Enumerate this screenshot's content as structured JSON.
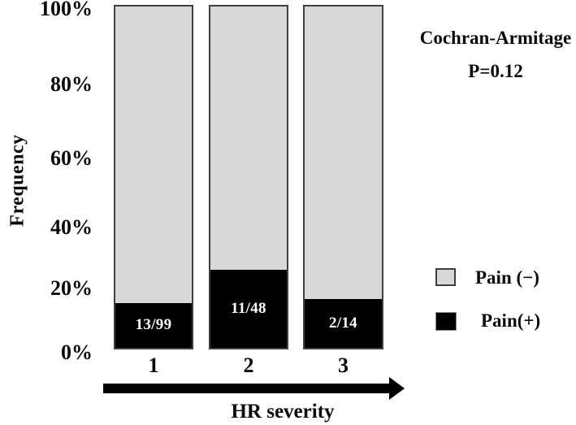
{
  "chart_data": {
    "type": "bar",
    "stacked": true,
    "percent_scale": true,
    "categories": [
      "1",
      "2",
      "3"
    ],
    "xlabel": "HR severity",
    "ylabel": "Frequency",
    "ylim": [
      0,
      100
    ],
    "ytick_labels": [
      "0%",
      "20%",
      "40%",
      "60%",
      "80%",
      "100%"
    ],
    "grid": false,
    "legend_position": "right",
    "series": [
      {
        "name": "Pain(+)",
        "color": "#000000",
        "counts": [
          "13/99",
          "11/48",
          "2/14"
        ],
        "values_pct": [
          13.13,
          22.92,
          14.29
        ]
      },
      {
        "name": "Pain (−)",
        "color": "#d8d8d8",
        "values_pct": [
          86.87,
          77.08,
          85.71
        ]
      }
    ],
    "annotations": [
      "Cochran-Armitage",
      "P=0.12"
    ],
    "legend": [
      {
        "label": "Pain (−)",
        "swatch_color": "#d8d8d8"
      },
      {
        "label": "Pain(+)",
        "swatch_color": "#000000"
      }
    ],
    "colors": {
      "bar_fill_negative": "#d8d8d8",
      "bar_fill_positive": "#000000",
      "bar_border": "#3f3f3f",
      "arrow": "#000000",
      "background": "#ffffff",
      "text": "#0a0a0a",
      "bar_value_text": "#ffffff"
    }
  }
}
